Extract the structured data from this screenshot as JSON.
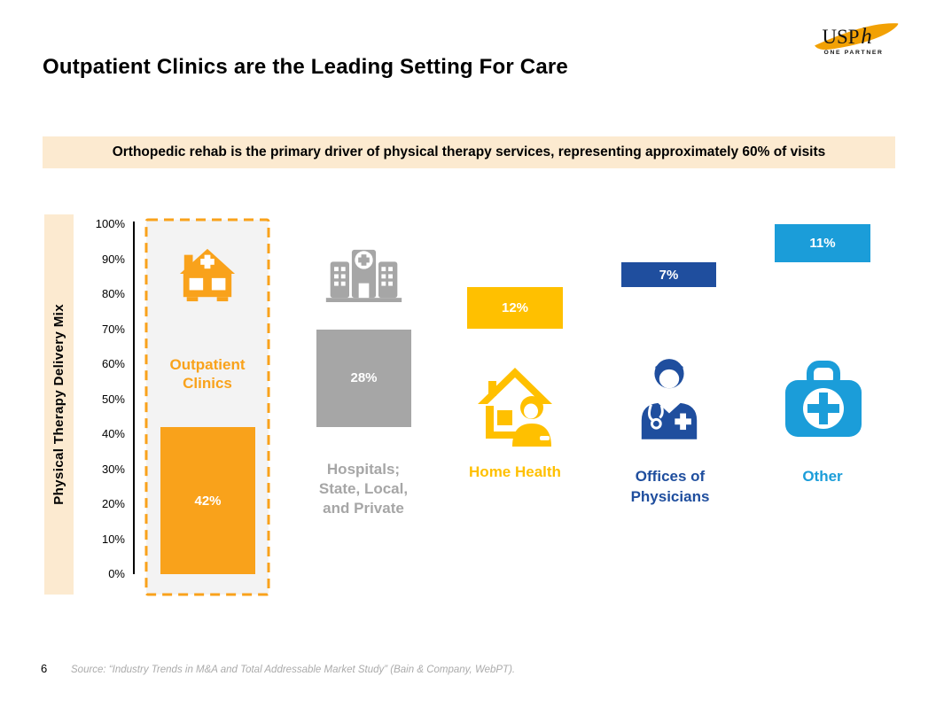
{
  "title": "Outpatient Clinics are the Leading Setting For Care",
  "logo": {
    "text_usp": "USP",
    "text_h": "h",
    "tagline": "ONE PARTNER"
  },
  "banner": {
    "text": "Orthopedic rehab is the primary driver of physical therapy services, representing approximately 60% of visits"
  },
  "colors": {
    "accent_orange": "#F9A21B",
    "gray": "#A6A6A6",
    "gold": "#FFC000",
    "dark_blue": "#1F4E9E",
    "light_blue": "#1B9DD9",
    "cream": "#FCEAD0",
    "source_gray": "#ABABAB"
  },
  "chart_data": {
    "type": "bar",
    "subtype": "floating stacked bars, cumulative bottom-to-top across categories",
    "title": "",
    "xlabel": "",
    "ylabel": "Physical Therapy Delivery Mix",
    "ylim": [
      0,
      100
    ],
    "grid": false,
    "legend": false,
    "yticks": [
      "100%",
      "90%",
      "80%",
      "70%",
      "60%",
      "50%",
      "40%",
      "30%",
      "20%",
      "10%",
      "0%"
    ],
    "categories": [
      "Outpatient Clinics",
      "Hospitals; State, Local, and Private",
      "Home Health",
      "Offices of Physicians",
      "Other"
    ],
    "values": [
      42,
      28,
      12,
      7,
      11
    ],
    "points": [
      {
        "label": "Outpatient\nClinics",
        "value": 42,
        "value_label": "42%",
        "color": "#F9A21B",
        "icon": "clinic-icon",
        "highlighted": true
      },
      {
        "label": "Hospitals;\nState, Local,\nand Private",
        "value": 28,
        "value_label": "28%",
        "color": "#A6A6A6",
        "icon": "hospital-icon",
        "highlighted": false
      },
      {
        "label": "Home Health",
        "value": 12,
        "value_label": "12%",
        "color": "#FFC000",
        "icon": "home-health-icon",
        "highlighted": false
      },
      {
        "label": "Offices of\nPhysicians",
        "value": 7,
        "value_label": "7%",
        "color": "#1F4E9E",
        "icon": "doctor-icon",
        "highlighted": false
      },
      {
        "label": "Other",
        "value": 11,
        "value_label": "11%",
        "color": "#1B9DD9",
        "icon": "medical-bag-icon",
        "highlighted": false
      }
    ]
  },
  "footer": {
    "page_number": "6",
    "source": "Source: “Industry Trends in M&A and Total Addressable Market Study” (Bain & Company, WebPT)."
  }
}
